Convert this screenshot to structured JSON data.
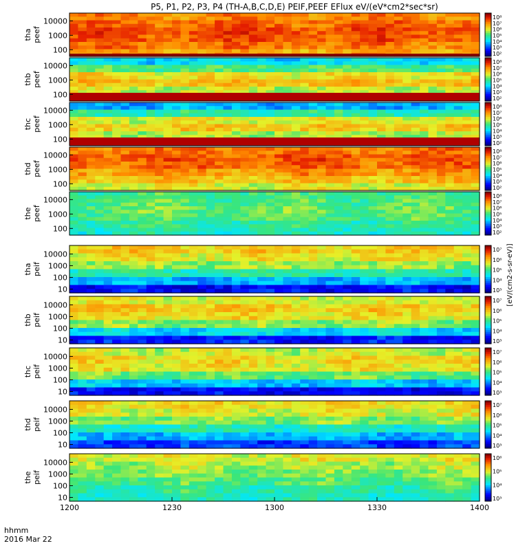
{
  "chart_data": {
    "type": "heatmap",
    "title": "P5, P1, P2, P3, P4 (TH-A,B,C,D,E) PEIF,PEEF EFlux eV/(eV*cm2*sec*sr)",
    "x_label_line1": "hhmm",
    "x_label_line2": "2016 Mar 22",
    "x_ticks": [
      "1200",
      "1230",
      "1300",
      "1330",
      "1400"
    ],
    "x_range": [
      1200,
      1400
    ],
    "colorbar_label": "[eV/(cm2-s-sr-eV)]",
    "panels": [
      {
        "name": "tha peef",
        "label_line1": "tha",
        "label_line2": "peef",
        "y_ticks": [
          "10000",
          "1000",
          "100"
        ],
        "colorbar_ticks": [
          "10⁸",
          "10⁷",
          "10⁶",
          "10⁵",
          "10⁴",
          "10³",
          "10²"
        ],
        "profile": [
          0.78,
          0.82,
          0.86,
          0.84,
          0.8,
          0.74
        ],
        "bottom_band": "darkred"
      },
      {
        "name": "thb peef",
        "label_line1": "thb",
        "label_line2": "peef",
        "y_ticks": [
          "10000",
          "1000",
          "100"
        ],
        "colorbar_ticks": [
          "10⁸",
          "10⁷",
          "10⁶",
          "10⁵",
          "10⁴",
          "10³",
          "10²"
        ],
        "profile": [
          0.35,
          0.5,
          0.65,
          0.7,
          0.6,
          0.45
        ],
        "bottom_band": "red"
      },
      {
        "name": "thc peef",
        "label_line1": "thc",
        "label_line2": "peef",
        "y_ticks": [
          "10000",
          "1000",
          "100"
        ],
        "colorbar_ticks": [
          "10⁸",
          "10⁷",
          "10⁶",
          "10⁵",
          "10⁴",
          "10³",
          "10²"
        ],
        "profile": [
          0.3,
          0.45,
          0.62,
          0.68,
          0.58,
          0.4
        ],
        "bottom_band": "red"
      },
      {
        "name": "thd peef",
        "label_line1": "thd",
        "label_line2": "peef",
        "y_ticks": [
          "10000",
          "1000",
          "100"
        ],
        "colorbar_ticks": [
          "10⁸",
          "10⁷",
          "10⁶",
          "10⁵",
          "10⁴",
          "10³",
          "10²"
        ],
        "profile": [
          0.8,
          0.84,
          0.82,
          0.76,
          0.7,
          0.62
        ],
        "bottom_band": "none"
      },
      {
        "name": "the peef",
        "label_line1": "the",
        "label_line2": "peef",
        "y_ticks": [
          "10000",
          "1000",
          "100"
        ],
        "colorbar_ticks": [
          "10⁸",
          "10⁷",
          "10⁶",
          "10⁵",
          "10⁴",
          "10³",
          "10²"
        ],
        "profile": [
          0.48,
          0.5,
          0.52,
          0.5,
          0.46,
          0.42
        ],
        "bottom_band": "none"
      },
      {
        "name": "tha peif",
        "label_line1": "tha",
        "label_line2": "peif",
        "y_ticks": [
          "10000",
          "1000",
          "100",
          "10"
        ],
        "colorbar_ticks": [
          "10⁷",
          "10⁶",
          "10⁵",
          "10⁴",
          "10³"
        ],
        "profile": [
          0.68,
          0.64,
          0.56,
          0.45,
          0.3,
          0.12
        ],
        "bottom_band": "none"
      },
      {
        "name": "thb peif",
        "label_line1": "thb",
        "label_line2": "peif",
        "y_ticks": [
          "10000",
          "1000",
          "100",
          "10"
        ],
        "colorbar_ticks": [
          "10⁷",
          "10⁶",
          "10⁵",
          "10⁴",
          "10³"
        ],
        "profile": [
          0.62,
          0.68,
          0.65,
          0.55,
          0.35,
          0.14
        ],
        "bottom_band": "none"
      },
      {
        "name": "thc peif",
        "label_line1": "thc",
        "label_line2": "peif",
        "y_ticks": [
          "10000",
          "1000",
          "100",
          "10"
        ],
        "colorbar_ticks": [
          "10⁷",
          "10⁶",
          "10⁵",
          "10⁴",
          "10³"
        ],
        "profile": [
          0.6,
          0.66,
          0.64,
          0.52,
          0.32,
          0.12
        ],
        "bottom_band": "none"
      },
      {
        "name": "thd peif",
        "label_line1": "thd",
        "label_line2": "peif",
        "y_ticks": [
          "10000",
          "1000",
          "100",
          "10"
        ],
        "colorbar_ticks": [
          "10⁷",
          "10⁶",
          "10⁵",
          "10⁴",
          "10³"
        ],
        "profile": [
          0.66,
          0.62,
          0.54,
          0.42,
          0.3,
          0.18
        ],
        "bottom_band": "none"
      },
      {
        "name": "the peif",
        "label_line1": "the",
        "label_line2": "peif",
        "y_ticks": [
          "10000",
          "1000",
          "100",
          "10"
        ],
        "colorbar_ticks": [
          "10⁶",
          "10⁵",
          "10⁴",
          "10³"
        ],
        "profile": [
          0.62,
          0.58,
          0.54,
          0.5,
          0.46,
          0.42
        ],
        "bottom_band": "none"
      }
    ]
  }
}
